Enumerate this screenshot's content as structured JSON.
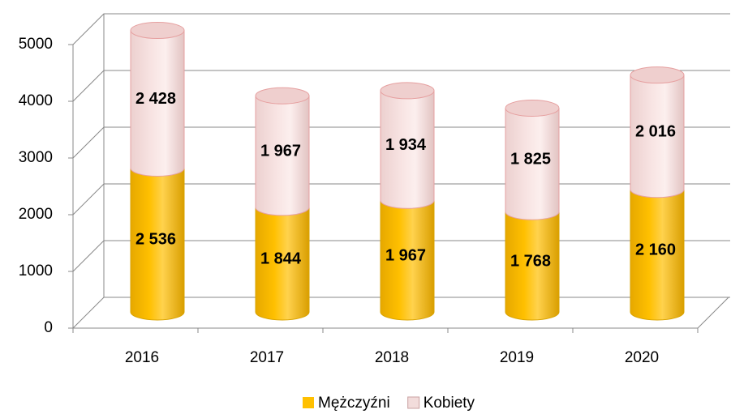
{
  "chart_data": {
    "type": "bar3d_stacked",
    "categories": [
      "2016",
      "2017",
      "2018",
      "2019",
      "2020"
    ],
    "series": [
      {
        "name": "Mężczyźni",
        "color": "#ffc000",
        "values": [
          2536,
          1844,
          1967,
          1768,
          2160
        ],
        "value_labels": [
          "2 536",
          "1 844",
          "1 967",
          "1 768",
          "2 160"
        ]
      },
      {
        "name": "Kobiety",
        "color": "#f2dcdb",
        "values": [
          2428,
          1967,
          1934,
          1825,
          2016
        ],
        "value_labels": [
          "2 428",
          "1 967",
          "1 934",
          "1 825",
          "2 016"
        ]
      }
    ],
    "ylim": [
      0,
      5000
    ],
    "yticks": [
      0,
      1000,
      2000,
      3000,
      4000,
      5000
    ],
    "grid": true,
    "legend": "bottom"
  }
}
